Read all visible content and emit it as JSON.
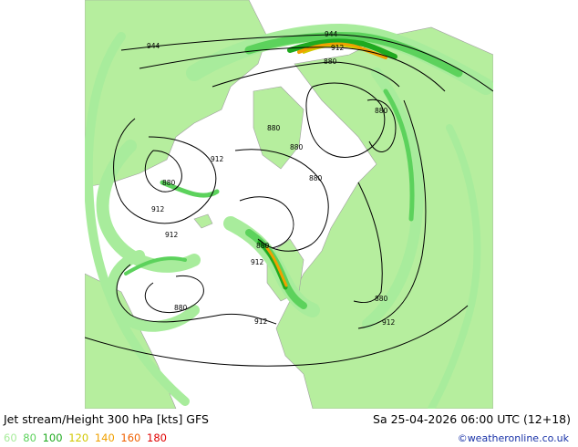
{
  "caption": {
    "title": "Jet stream/Height 300 hPa [kts] GFS",
    "datetime": "Sa 25-04-2026 06:00 UTC (12+18)"
  },
  "legend": {
    "items": [
      {
        "label": "60",
        "color": "#a8ec9c"
      },
      {
        "label": "80",
        "color": "#5cd25c"
      },
      {
        "label": "100",
        "color": "#1faa1f"
      },
      {
        "label": "120",
        "color": "#d2c800"
      },
      {
        "label": "140",
        "color": "#f0a000"
      },
      {
        "label": "160",
        "color": "#f06000"
      },
      {
        "label": "180",
        "color": "#e00000"
      }
    ]
  },
  "credit": "©weatheronline.co.uk",
  "contour_labels": [
    "944",
    "944",
    "912",
    "880",
    "880",
    "880",
    "880",
    "880",
    "912",
    "880",
    "912",
    "912",
    "880",
    "912",
    "880",
    "880",
    "912",
    "912"
  ],
  "colors": {
    "land": "#b6ee9e",
    "sea": "#ffffff",
    "coast": "#a0a0a0",
    "contour": "#000000",
    "jet_60": "#a8ec9c",
    "jet_80": "#5cd25c",
    "jet_100": "#1faa1f",
    "jet_120": "#d2c800",
    "jet_140": "#f0a000"
  }
}
